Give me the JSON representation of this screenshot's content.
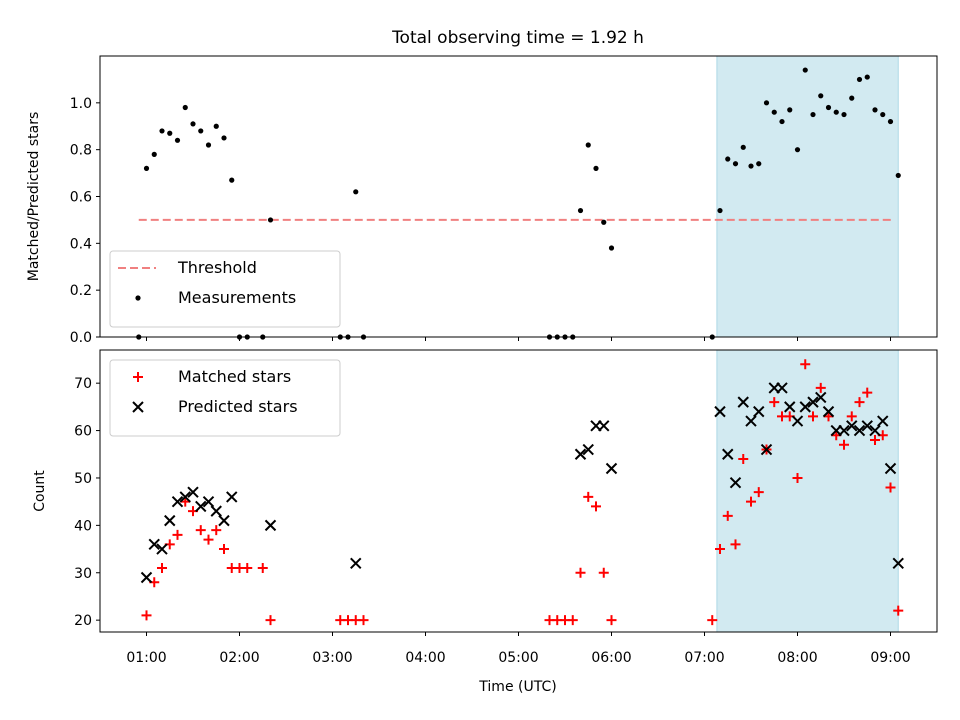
{
  "chart_data": {
    "title": "Total observing time = 1.92 h",
    "xlabel": "Time (UTC)",
    "type": "scatter",
    "xlim": [
      "00:30",
      "09:30"
    ],
    "x_ticks": [
      "01:00",
      "02:00",
      "03:00",
      "04:00",
      "05:00",
      "06:00",
      "07:00",
      "08:00",
      "09:00"
    ],
    "highlight": {
      "x_range": [
        "07:08",
        "09:05"
      ],
      "color": "#add8e6"
    },
    "panels": [
      {
        "type": "scatter",
        "ylabel": "Matched/Predicted stars",
        "ylim": [
          0,
          1.2
        ],
        "y_ticks": [
          "0.0",
          "0.2",
          "0.4",
          "0.6",
          "0.8",
          "1.0"
        ],
        "legend": {
          "placement": "lower left"
        },
        "threshold": {
          "name": "Threshold",
          "y": 0.5,
          "x_range": [
            "00:55",
            "09:02"
          ],
          "color": "#f08080"
        },
        "series": [
          {
            "name": "Measurements",
            "color": "#000000",
            "points": [
              [
                "00:55",
                0.0
              ],
              [
                "01:00",
                0.72
              ],
              [
                "01:05",
                0.78
              ],
              [
                "01:10",
                0.88
              ],
              [
                "01:15",
                0.87
              ],
              [
                "01:20",
                0.84
              ],
              [
                "01:25",
                0.98
              ],
              [
                "01:30",
                0.91
              ],
              [
                "01:35",
                0.88
              ],
              [
                "01:40",
                0.82
              ],
              [
                "01:45",
                0.9
              ],
              [
                "01:50",
                0.85
              ],
              [
                "01:55",
                0.67
              ],
              [
                "02:00",
                0.0
              ],
              [
                "02:05",
                0.0
              ],
              [
                "02:15",
                0.0
              ],
              [
                "02:20",
                0.5
              ],
              [
                "03:05",
                0.0
              ],
              [
                "03:10",
                0.0
              ],
              [
                "03:15",
                0.62
              ],
              [
                "03:20",
                0.0
              ],
              [
                "05:20",
                0.0
              ],
              [
                "05:25",
                0.0
              ],
              [
                "05:30",
                0.0
              ],
              [
                "05:35",
                0.0
              ],
              [
                "05:40",
                0.54
              ],
              [
                "05:45",
                0.82
              ],
              [
                "05:50",
                0.72
              ],
              [
                "05:55",
                0.49
              ],
              [
                "06:00",
                0.38
              ],
              [
                "07:05",
                0.0
              ],
              [
                "07:10",
                0.54
              ],
              [
                "07:15",
                0.76
              ],
              [
                "07:20",
                0.74
              ],
              [
                "07:25",
                0.81
              ],
              [
                "07:30",
                0.73
              ],
              [
                "07:35",
                0.74
              ],
              [
                "07:40",
                1.0
              ],
              [
                "07:45",
                0.96
              ],
              [
                "07:50",
                0.92
              ],
              [
                "07:55",
                0.97
              ],
              [
                "08:00",
                0.8
              ],
              [
                "08:05",
                1.14
              ],
              [
                "08:10",
                0.95
              ],
              [
                "08:15",
                1.03
              ],
              [
                "08:20",
                0.98
              ],
              [
                "08:25",
                0.96
              ],
              [
                "08:30",
                0.95
              ],
              [
                "08:35",
                1.02
              ],
              [
                "08:40",
                1.1
              ],
              [
                "08:45",
                1.11
              ],
              [
                "08:50",
                0.97
              ],
              [
                "08:55",
                0.95
              ],
              [
                "09:00",
                0.92
              ],
              [
                "09:05",
                0.69
              ]
            ]
          }
        ]
      },
      {
        "type": "scatter",
        "ylabel": "Count",
        "ylim": [
          17.5,
          77
        ],
        "y_ticks": [
          "20",
          "30",
          "40",
          "50",
          "60",
          "70"
        ],
        "legend": {
          "placement": "upper left"
        },
        "series": [
          {
            "name": "Matched stars",
            "color": "#ff0000",
            "marker": "plus",
            "points": [
              [
                "01:00",
                21
              ],
              [
                "01:05",
                28
              ],
              [
                "01:10",
                31
              ],
              [
                "01:15",
                36
              ],
              [
                "01:20",
                38
              ],
              [
                "01:25",
                45
              ],
              [
                "01:30",
                43
              ],
              [
                "01:35",
                39
              ],
              [
                "01:40",
                37
              ],
              [
                "01:45",
                39
              ],
              [
                "01:50",
                35
              ],
              [
                "01:55",
                31
              ],
              [
                "02:00",
                31
              ],
              [
                "02:05",
                31
              ],
              [
                "02:15",
                31
              ],
              [
                "02:20",
                20
              ],
              [
                "03:05",
                20
              ],
              [
                "03:10",
                20
              ],
              [
                "03:15",
                20
              ],
              [
                "03:20",
                20
              ],
              [
                "05:20",
                20
              ],
              [
                "05:25",
                20
              ],
              [
                "05:30",
                20
              ],
              [
                "05:35",
                20
              ],
              [
                "05:40",
                30
              ],
              [
                "05:45",
                46
              ],
              [
                "05:50",
                44
              ],
              [
                "05:55",
                30
              ],
              [
                "06:00",
                20
              ],
              [
                "07:05",
                20
              ],
              [
                "07:10",
                35
              ],
              [
                "07:15",
                42
              ],
              [
                "07:20",
                36
              ],
              [
                "07:25",
                54
              ],
              [
                "07:30",
                45
              ],
              [
                "07:35",
                47
              ],
              [
                "07:40",
                56
              ],
              [
                "07:45",
                66
              ],
              [
                "07:50",
                63
              ],
              [
                "07:55",
                63
              ],
              [
                "08:00",
                50
              ],
              [
                "08:05",
                74
              ],
              [
                "08:10",
                63
              ],
              [
                "08:15",
                69
              ],
              [
                "08:20",
                63
              ],
              [
                "08:25",
                59
              ],
              [
                "08:30",
                57
              ],
              [
                "08:35",
                63
              ],
              [
                "08:40",
                66
              ],
              [
                "08:45",
                68
              ],
              [
                "08:50",
                58
              ],
              [
                "08:55",
                59
              ],
              [
                "09:00",
                48
              ],
              [
                "09:05",
                22
              ]
            ]
          },
          {
            "name": "Predicted stars",
            "color": "#000000",
            "marker": "x",
            "points": [
              [
                "01:00",
                29
              ],
              [
                "01:05",
                36
              ],
              [
                "01:10",
                35
              ],
              [
                "01:15",
                41
              ],
              [
                "01:20",
                45
              ],
              [
                "01:25",
                46
              ],
              [
                "01:30",
                47
              ],
              [
                "01:35",
                44
              ],
              [
                "01:40",
                45
              ],
              [
                "01:45",
                43
              ],
              [
                "01:50",
                41
              ],
              [
                "01:55",
                46
              ],
              [
                "02:20",
                40
              ],
              [
                "03:15",
                32
              ],
              [
                "05:40",
                55
              ],
              [
                "05:45",
                56
              ],
              [
                "05:50",
                61
              ],
              [
                "05:55",
                61
              ],
              [
                "06:00",
                52
              ],
              [
                "07:10",
                64
              ],
              [
                "07:15",
                55
              ],
              [
                "07:20",
                49
              ],
              [
                "07:25",
                66
              ],
              [
                "07:30",
                62
              ],
              [
                "07:35",
                64
              ],
              [
                "07:40",
                56
              ],
              [
                "07:45",
                69
              ],
              [
                "07:50",
                69
              ],
              [
                "07:55",
                65
              ],
              [
                "08:00",
                62
              ],
              [
                "08:05",
                65
              ],
              [
                "08:10",
                66
              ],
              [
                "08:15",
                67
              ],
              [
                "08:20",
                64
              ],
              [
                "08:25",
                60
              ],
              [
                "08:30",
                60
              ],
              [
                "08:35",
                61
              ],
              [
                "08:40",
                60
              ],
              [
                "08:45",
                61
              ],
              [
                "08:50",
                60
              ],
              [
                "08:55",
                62
              ],
              [
                "09:00",
                52
              ],
              [
                "09:05",
                32
              ]
            ]
          }
        ]
      }
    ]
  }
}
